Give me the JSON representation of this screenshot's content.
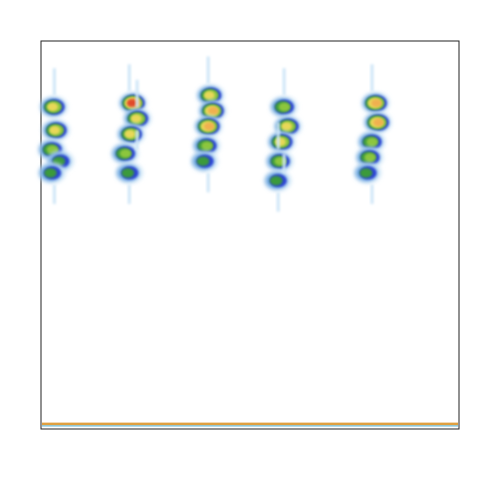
{
  "chart_data": {
    "type": "heatmap",
    "title": "",
    "xlabel": "",
    "ylabel": "",
    "xlim": [
      0,
      1
    ],
    "ylim": [
      0,
      1
    ],
    "grid": false,
    "legend": "none",
    "colormap": [
      "#ffffff",
      "#cfe6f7",
      "#6fa8e0",
      "#2a3fd6",
      "#3a9a3a",
      "#8cc63e",
      "#e8d858",
      "#f0b050",
      "#e04a2a"
    ],
    "baseline_band": {
      "y": 0.01,
      "colors": [
        "#e0a040",
        "#3aa0c0"
      ]
    },
    "series": [
      {
        "name": "",
        "clusters": [
          {
            "x": 0.03,
            "y": 0.83,
            "intensity": 0.78
          },
          {
            "x": 0.035,
            "y": 0.77,
            "intensity": 0.72
          },
          {
            "x": 0.025,
            "y": 0.72,
            "intensity": 0.62
          },
          {
            "x": 0.045,
            "y": 0.69,
            "intensity": 0.55
          },
          {
            "x": 0.025,
            "y": 0.66,
            "intensity": 0.5
          },
          {
            "x": 0.22,
            "y": 0.84,
            "intensity": 0.95
          },
          {
            "x": 0.23,
            "y": 0.8,
            "intensity": 0.8
          },
          {
            "x": 0.215,
            "y": 0.76,
            "intensity": 0.74
          },
          {
            "x": 0.2,
            "y": 0.71,
            "intensity": 0.6
          },
          {
            "x": 0.21,
            "y": 0.66,
            "intensity": 0.45
          },
          {
            "x": 0.405,
            "y": 0.86,
            "intensity": 0.8
          },
          {
            "x": 0.41,
            "y": 0.82,
            "intensity": 0.85
          },
          {
            "x": 0.4,
            "y": 0.78,
            "intensity": 0.88
          },
          {
            "x": 0.395,
            "y": 0.73,
            "intensity": 0.62
          },
          {
            "x": 0.39,
            "y": 0.69,
            "intensity": 0.5
          },
          {
            "x": 0.58,
            "y": 0.83,
            "intensity": 0.65
          },
          {
            "x": 0.59,
            "y": 0.78,
            "intensity": 0.8
          },
          {
            "x": 0.575,
            "y": 0.74,
            "intensity": 0.7
          },
          {
            "x": 0.57,
            "y": 0.69,
            "intensity": 0.6
          },
          {
            "x": 0.565,
            "y": 0.64,
            "intensity": 0.45
          },
          {
            "x": 0.8,
            "y": 0.84,
            "intensity": 0.85
          },
          {
            "x": 0.805,
            "y": 0.79,
            "intensity": 0.82
          },
          {
            "x": 0.79,
            "y": 0.74,
            "intensity": 0.68
          },
          {
            "x": 0.785,
            "y": 0.7,
            "intensity": 0.62
          },
          {
            "x": 0.78,
            "y": 0.66,
            "intensity": 0.45
          }
        ]
      }
    ]
  }
}
